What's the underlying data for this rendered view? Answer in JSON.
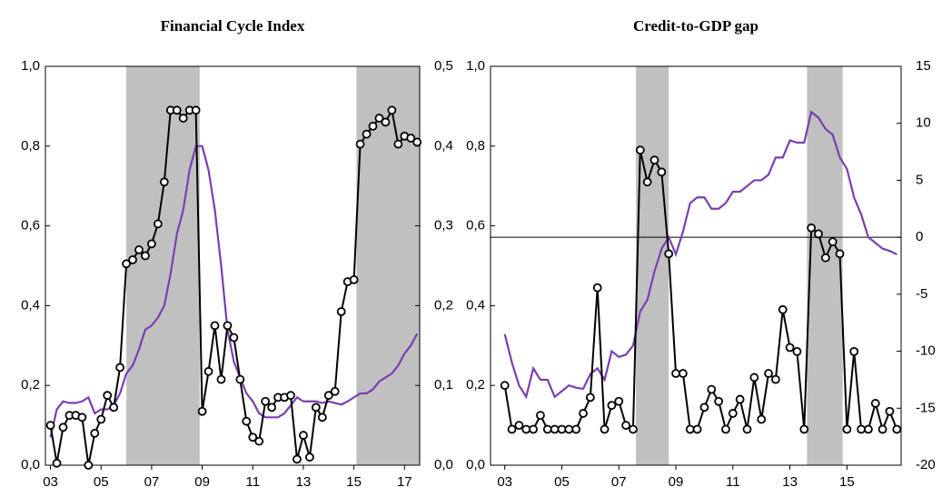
{
  "chart_data": [
    {
      "type": "line",
      "title": "Financial Cycle Index",
      "x": [
        3,
        3.25,
        3.5,
        3.75,
        4,
        4.25,
        4.5,
        4.75,
        5,
        5.25,
        5.5,
        5.75,
        6,
        6.25,
        6.5,
        6.75,
        7,
        7.25,
        7.5,
        7.75,
        8,
        8.25,
        8.5,
        8.75,
        9,
        9.25,
        9.5,
        9.75,
        10,
        10.25,
        10.5,
        10.75,
        11,
        11.25,
        11.5,
        11.75,
        12,
        12.25,
        12.5,
        12.75,
        13,
        13.25,
        13.5,
        13.75,
        14,
        14.25,
        14.5,
        14.75,
        15,
        15.25,
        15.5,
        15.75,
        16,
        16.25,
        16.5,
        16.75,
        17,
        17.25,
        17.5
      ],
      "xlim": [
        2.8,
        17.6
      ],
      "xticks": [
        {
          "value": 3,
          "label": "03"
        },
        {
          "value": 5,
          "label": "05"
        },
        {
          "value": 7,
          "label": "07"
        },
        {
          "value": 9,
          "label": "09"
        },
        {
          "value": 11,
          "label": "11"
        },
        {
          "value": 13,
          "label": "13"
        },
        {
          "value": 15,
          "label": "15"
        },
        {
          "value": 17,
          "label": "17"
        }
      ],
      "ylim": [
        0,
        1
      ],
      "yticks": [
        {
          "value": 0,
          "label": "0,0"
        },
        {
          "value": 0.2,
          "label": "0,2"
        },
        {
          "value": 0.4,
          "label": "0,4"
        },
        {
          "value": 0.6,
          "label": "0,6"
        },
        {
          "value": 0.8,
          "label": "0,8"
        },
        {
          "value": 1,
          "label": "1,0"
        }
      ],
      "y2lim": [
        0,
        0.5
      ],
      "y2ticks": [
        {
          "value": 0,
          "label": "0,0"
        },
        {
          "value": 0.1,
          "label": "0,1"
        },
        {
          "value": 0.2,
          "label": "0,2"
        },
        {
          "value": 0.3,
          "label": "0,3"
        },
        {
          "value": 0.4,
          "label": "0,4"
        },
        {
          "value": 0.5,
          "label": "0,5"
        }
      ],
      "shaded_x": [
        [
          6,
          8.9
        ],
        [
          15.1,
          17.6
        ]
      ],
      "series": [
        {
          "color": "#7a3fb0",
          "axis": "y2",
          "values": [
            0.035,
            0.07,
            0.08,
            0.078,
            0.078,
            0.08,
            0.085,
            0.065,
            0.07,
            0.07,
            0.075,
            0.09,
            0.115,
            0.125,
            0.145,
            0.17,
            0.175,
            0.185,
            0.2,
            0.24,
            0.29,
            0.32,
            0.37,
            0.4,
            0.4,
            0.37,
            0.32,
            0.25,
            0.17,
            0.13,
            0.11,
            0.09,
            0.08,
            0.065,
            0.06,
            0.06,
            0.06,
            0.065,
            0.075,
            0.085,
            0.08,
            0.08,
            0.08,
            0.078,
            0.08,
            0.078,
            0.076,
            0.08,
            0.085,
            0.09,
            0.09,
            0.095,
            0.105,
            0.11,
            0.115,
            0.125,
            0.14,
            0.15,
            0.165
          ]
        },
        {
          "color": "#000000",
          "marker": "circle",
          "values": [
            0.1,
            0.005,
            0.095,
            0.125,
            0.125,
            0.12,
            0.0,
            0.08,
            0.115,
            0.175,
            0.145,
            0.245,
            0.505,
            0.515,
            0.54,
            0.525,
            0.555,
            0.605,
            0.71,
            0.89,
            0.89,
            0.87,
            0.89,
            0.89,
            0.135,
            0.235,
            0.35,
            0.215,
            0.35,
            0.32,
            0.215,
            0.11,
            0.07,
            0.06,
            0.16,
            0.145,
            0.17,
            0.17,
            0.175,
            0.015,
            0.075,
            0.02,
            0.145,
            0.12,
            0.175,
            0.185,
            0.385,
            0.46,
            0.465,
            0.805,
            0.83,
            0.85,
            0.87,
            0.86,
            0.89,
            0.805,
            0.825,
            0.82,
            0.81
          ]
        }
      ]
    },
    {
      "type": "line",
      "title": "Credit-to-GDP gap",
      "x": [
        3,
        3.25,
        3.5,
        3.75,
        4,
        4.25,
        4.5,
        4.75,
        5,
        5.25,
        5.5,
        5.75,
        6,
        6.25,
        6.5,
        6.75,
        7,
        7.25,
        7.5,
        7.75,
        8,
        8.25,
        8.5,
        8.75,
        9,
        9.25,
        9.5,
        9.75,
        10,
        10.25,
        10.5,
        10.75,
        11,
        11.25,
        11.5,
        11.75,
        12,
        12.25,
        12.5,
        12.75,
        13,
        13.25,
        13.5,
        13.75,
        14,
        14.25,
        14.5,
        14.75,
        15,
        15.25,
        15.5,
        15.75,
        16,
        16.25,
        16.5,
        16.75
      ],
      "xlim": [
        2.5,
        16.9
      ],
      "xticks": [
        {
          "value": 3,
          "label": "03"
        },
        {
          "value": 5,
          "label": "05"
        },
        {
          "value": 7,
          "label": "07"
        },
        {
          "value": 9,
          "label": "09"
        },
        {
          "value": 11,
          "label": "11"
        },
        {
          "value": 13,
          "label": "13"
        },
        {
          "value": 15,
          "label": "15"
        }
      ],
      "ylim": [
        0,
        1
      ],
      "yticks": [
        {
          "value": 0,
          "label": "0,0"
        },
        {
          "value": 0.2,
          "label": "0,2"
        },
        {
          "value": 0.4,
          "label": "0,4"
        },
        {
          "value": 0.6,
          "label": "0,6"
        },
        {
          "value": 0.8,
          "label": "0,8"
        },
        {
          "value": 1,
          "label": "1,0"
        }
      ],
      "y2lim": [
        -20,
        15
      ],
      "y2ticks": [
        -20,
        -15,
        -10,
        -5,
        0,
        5,
        10,
        15
      ],
      "hline_y2": 0,
      "shaded_x": [
        [
          7.6,
          8.75
        ],
        [
          13.6,
          14.85
        ]
      ],
      "series": [
        {
          "color": "#7a3fb0",
          "axis": "y2",
          "values": [
            -8.5,
            -11,
            -13,
            -14,
            -11.5,
            -12.5,
            -12.5,
            -14,
            -13.5,
            -13,
            -13.2,
            -13.3,
            -12,
            -11.5,
            -12.5,
            -10,
            -10.5,
            -10.3,
            -9.5,
            -6.5,
            -5.5,
            -3,
            -1,
            0,
            -1.5,
            0.5,
            3,
            3.5,
            3.5,
            2.5,
            2.5,
            3,
            4,
            4,
            4.5,
            5,
            5,
            5.5,
            7,
            7,
            8.5,
            8.3,
            8.3,
            11,
            10.5,
            9.5,
            9,
            7,
            6,
            3.5,
            2,
            0,
            -0.5,
            -1,
            -1.2,
            -1.5
          ]
        },
        {
          "color": "#000000",
          "marker": "circle",
          "values": [
            0.2,
            0.09,
            0.1,
            0.09,
            0.09,
            0.125,
            0.09,
            0.09,
            0.09,
            0.09,
            0.09,
            0.13,
            0.17,
            0.445,
            0.09,
            0.15,
            0.16,
            0.1,
            0.09,
            0.79,
            0.71,
            0.765,
            0.735,
            0.53,
            0.23,
            0.23,
            0.09,
            0.09,
            0.145,
            0.19,
            0.16,
            0.09,
            0.13,
            0.165,
            0.09,
            0.22,
            0.115,
            0.23,
            0.215,
            0.39,
            0.295,
            0.285,
            0.09,
            0.595,
            0.58,
            0.52,
            0.56,
            0.53,
            0.09,
            0.285,
            0.09,
            0.09,
            0.155,
            0.09,
            0.135,
            0.09
          ]
        }
      ]
    }
  ]
}
